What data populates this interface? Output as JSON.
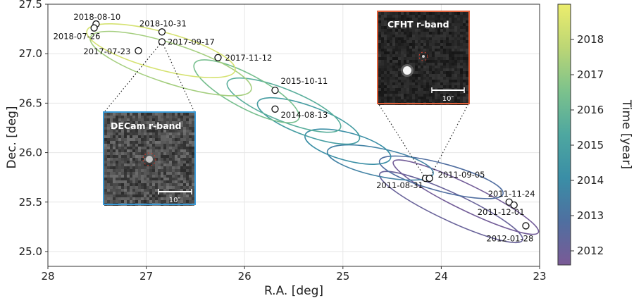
{
  "chart_data": {
    "type": "scatter",
    "xlabel": "R.A. [deg]",
    "ylabel": "Dec. [deg]",
    "xlim": [
      28,
      23
    ],
    "ylim": [
      24.85,
      27.5
    ],
    "x_ticks": [
      "28",
      "27",
      "26",
      "25",
      "24",
      "23"
    ],
    "y_ticks": [
      "25.0",
      "25.5",
      "26.0",
      "26.5",
      "27.0",
      "27.5"
    ],
    "grid": true,
    "colorbar": {
      "label": "Time [year]",
      "range": [
        2011.6,
        2019.0
      ],
      "ticks": [
        "2012",
        "2013",
        "2014",
        "2015",
        "2016",
        "2017",
        "2018"
      ],
      "colors": [
        "#7a5a96",
        "#4f6fa0",
        "#3a8ea6",
        "#4ea7a0",
        "#7cc28c",
        "#bcd675",
        "#eced6c"
      ]
    },
    "points": [
      {
        "label": "2018-08-10",
        "ra": 27.51,
        "dec": 27.3
      },
      {
        "label": "2018-07-26",
        "ra": 27.53,
        "dec": 27.26
      },
      {
        "label": "2018-10-31",
        "ra": 26.84,
        "dec": 27.22
      },
      {
        "label": "2017-09-17",
        "ra": 26.84,
        "dec": 27.12
      },
      {
        "label": "2017-07-23",
        "ra": 27.08,
        "dec": 27.03
      },
      {
        "label": "2017-11-12",
        "ra": 26.27,
        "dec": 26.96
      },
      {
        "label": "2015-10-11",
        "ra": 25.69,
        "dec": 26.63
      },
      {
        "label": "2014-08-13",
        "ra": 25.69,
        "dec": 26.44
      },
      {
        "label": "2011-08-31",
        "ra": 24.16,
        "dec": 25.74
      },
      {
        "label": "2011-09-05",
        "ra": 24.12,
        "dec": 25.74
      },
      {
        "label": "2011-11-24",
        "ra": 23.31,
        "dec": 25.5
      },
      {
        "label": "2011-12-01",
        "ra": 23.26,
        "dec": 25.47
      },
      {
        "label": "2012-01-28",
        "ra": 23.14,
        "dec": 25.26
      }
    ],
    "ellipses": [
      {
        "ra": 23.9,
        "dec": 25.45,
        "a": 0.8,
        "b": 0.14,
        "angle": 25,
        "year": 2012.1
      },
      {
        "ra": 23.75,
        "dec": 25.55,
        "a": 0.82,
        "b": 0.13,
        "angle": 26,
        "year": 2011.8
      },
      {
        "ra": 24.0,
        "dec": 25.75,
        "a": 0.65,
        "b": 0.14,
        "angle": 15,
        "year": 2012.8
      },
      {
        "ra": 24.62,
        "dec": 25.9,
        "a": 0.55,
        "b": 0.14,
        "angle": 12,
        "year": 2013.6
      },
      {
        "ra": 24.95,
        "dec": 26.06,
        "a": 0.45,
        "b": 0.14,
        "angle": 15,
        "year": 2014.1
      },
      {
        "ra": 25.35,
        "dec": 26.32,
        "a": 0.55,
        "b": 0.15,
        "angle": 20,
        "year": 2014.8
      },
      {
        "ra": 25.6,
        "dec": 26.48,
        "a": 0.62,
        "b": 0.16,
        "angle": 22,
        "year": 2015.6
      },
      {
        "ra": 25.98,
        "dec": 26.62,
        "a": 0.6,
        "b": 0.17,
        "angle": 28,
        "year": 2016.4
      },
      {
        "ra": 26.75,
        "dec": 26.9,
        "a": 0.86,
        "b": 0.2,
        "angle": 18,
        "year": 2017.3
      },
      {
        "ra": 26.85,
        "dec": 27.03,
        "a": 0.78,
        "b": 0.19,
        "angle": 15,
        "year": 2018.4
      }
    ]
  },
  "insets": {
    "decam": {
      "title": "DECam r-band",
      "scale_label": "10″",
      "border_color": "#3a9bd8"
    },
    "cfht": {
      "title": "CFHT r-band",
      "scale_label": "10″",
      "border_color": "#e0603a"
    }
  }
}
